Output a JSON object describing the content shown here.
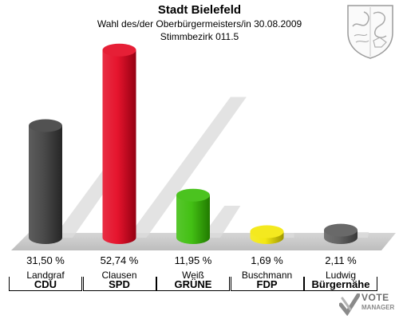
{
  "header": {
    "title": "Stadt Bielefeld",
    "subtitle": "Wahl des/der Oberbürgermeisters/in 30.08.2009",
    "district": "Stimmbezirk 011.5"
  },
  "brand": {
    "vote": "VOTE",
    "sub": "MANAGER"
  },
  "chart_data": {
    "type": "bar",
    "title": "Stadt Bielefeld",
    "ylim": [
      0,
      60
    ],
    "grid": false,
    "categories": [
      "CDU",
      "SPD",
      "GRÜNE",
      "FDP",
      "Bürgernähe"
    ],
    "candidates": [
      "Landgraf",
      "Clausen",
      "Weiß",
      "Buschmann",
      "Ludwig"
    ],
    "values": [
      31.5,
      52.74,
      11.95,
      1.69,
      2.11
    ],
    "value_labels": [
      "31,50 %",
      "52,74 %",
      "11,95 %",
      "1,69 %",
      "2,11 %"
    ],
    "colors": [
      "#3a3a3a",
      "#e3001b",
      "#33bb00",
      "#f2e600",
      "#555555"
    ]
  }
}
